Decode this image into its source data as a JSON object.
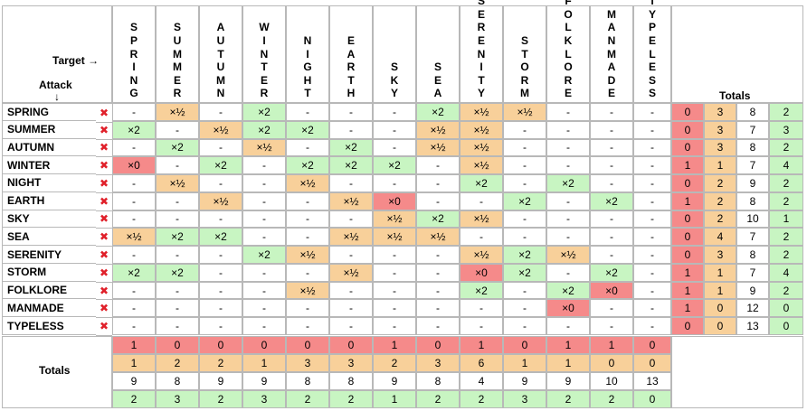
{
  "header": {
    "target_label": "Target →",
    "attack_label": "Attack",
    "attack_arrow": "↓",
    "right_totals_label": "Totals",
    "bottom_totals_label": "Totals"
  },
  "types": [
    "SPRING",
    "SUMMER",
    "AUTUMN",
    "WINTER",
    "NIGHT",
    "EARTH",
    "SKY",
    "SEA",
    "SERENITY",
    "STORM",
    "FOLKLORE",
    "MANMADE",
    "TYPELESS"
  ],
  "row_marker": "✖",
  "matrix": [
    [
      "-",
      "×½",
      "-",
      "×2",
      "-",
      "-",
      "-",
      "×2",
      "×½",
      "×½",
      "-",
      "-",
      "-"
    ],
    [
      "×2",
      "-",
      "×½",
      "×2",
      "×2",
      "-",
      "-",
      "×½",
      "×½",
      "-",
      "-",
      "-",
      "-"
    ],
    [
      "-",
      "×2",
      "-",
      "×½",
      "-",
      "×2",
      "-",
      "×½",
      "×½",
      "-",
      "-",
      "-",
      "-"
    ],
    [
      "×0",
      "-",
      "×2",
      "-",
      "×2",
      "×2",
      "×2",
      "-",
      "×½",
      "-",
      "-",
      "-",
      "-"
    ],
    [
      "-",
      "×½",
      "-",
      "-",
      "×½",
      "-",
      "-",
      "-",
      "×2",
      "-",
      "×2",
      "-",
      "-"
    ],
    [
      "-",
      "-",
      "×½",
      "-",
      "-",
      "×½",
      "×0",
      "-",
      "-",
      "×2",
      "-",
      "×2",
      "-"
    ],
    [
      "-",
      "-",
      "-",
      "-",
      "-",
      "-",
      "×½",
      "×2",
      "×½",
      "-",
      "-",
      "-",
      "-"
    ],
    [
      "×½",
      "×2",
      "×2",
      "-",
      "-",
      "×½",
      "×½",
      "×½",
      "-",
      "-",
      "-",
      "-",
      "-"
    ],
    [
      "-",
      "-",
      "-",
      "×2",
      "×½",
      "-",
      "-",
      "-",
      "×½",
      "×2",
      "×½",
      "-",
      "-"
    ],
    [
      "×2",
      "×2",
      "-",
      "-",
      "-",
      "×½",
      "-",
      "-",
      "×0",
      "×2",
      "-",
      "×2",
      "-"
    ],
    [
      "-",
      "-",
      "-",
      "-",
      "×½",
      "-",
      "-",
      "-",
      "×2",
      "-",
      "×2",
      "×0",
      "-"
    ],
    [
      "-",
      "-",
      "-",
      "-",
      "-",
      "-",
      "-",
      "-",
      "-",
      "-",
      "×0",
      "-",
      "-"
    ],
    [
      "-",
      "-",
      "-",
      "-",
      "-",
      "-",
      "-",
      "-",
      "-",
      "-",
      "-",
      "-",
      "-"
    ]
  ],
  "row_totals": [
    [
      "0",
      "3",
      "8",
      "2"
    ],
    [
      "0",
      "3",
      "7",
      "3"
    ],
    [
      "0",
      "3",
      "8",
      "2"
    ],
    [
      "1",
      "1",
      "7",
      "4"
    ],
    [
      "0",
      "2",
      "9",
      "2"
    ],
    [
      "1",
      "2",
      "8",
      "2"
    ],
    [
      "0",
      "2",
      "10",
      "1"
    ],
    [
      "0",
      "4",
      "7",
      "2"
    ],
    [
      "0",
      "3",
      "8",
      "2"
    ],
    [
      "1",
      "1",
      "7",
      "4"
    ],
    [
      "1",
      "1",
      "9",
      "2"
    ],
    [
      "1",
      "0",
      "12",
      "0"
    ],
    [
      "0",
      "0",
      "13",
      "0"
    ]
  ],
  "column_totals": [
    [
      "1",
      "0",
      "0",
      "0",
      "0",
      "0",
      "1",
      "0",
      "1",
      "0",
      "1",
      "1",
      "0"
    ],
    [
      "1",
      "2",
      "2",
      "1",
      "3",
      "3",
      "2",
      "3",
      "6",
      "1",
      "1",
      "0",
      "0"
    ],
    [
      "9",
      "8",
      "9",
      "9",
      "8",
      "8",
      "9",
      "8",
      "4",
      "9",
      "9",
      "10",
      "13"
    ],
    [
      "2",
      "3",
      "2",
      "3",
      "2",
      "2",
      "1",
      "2",
      "2",
      "3",
      "2",
      "2",
      "0"
    ]
  ],
  "colors": {
    "zero": "#f58a8a",
    "half": "#f8d09a",
    "double": "#c8f5c2",
    "neutral": "#ffffff",
    "grid": "#b8b8b8",
    "marker": "#e0202a"
  }
}
